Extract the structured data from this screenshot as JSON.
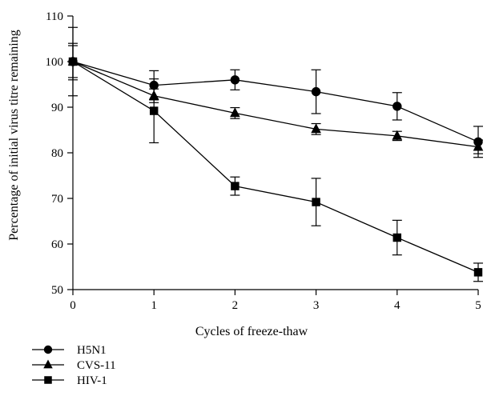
{
  "chart_data": {
    "type": "line",
    "title": "",
    "xlabel": "Cycles of freeze-thaw",
    "ylabel": "Percentage of initial virus titre remaining",
    "x": [
      0,
      1,
      2,
      3,
      4,
      5
    ],
    "xlim": [
      0,
      5
    ],
    "ylim": [
      50,
      110
    ],
    "xticks": [
      0,
      1,
      2,
      3,
      4,
      5
    ],
    "yticks": [
      50,
      60,
      70,
      80,
      90,
      100,
      110
    ],
    "grid": false,
    "legend_position": "bottom-left",
    "series": [
      {
        "name": "H5N1",
        "marker": "circle",
        "values": [
          100,
          94.8,
          96.0,
          93.4,
          90.2,
          82.4
        ],
        "errors": [
          4.0,
          3.2,
          2.2,
          4.8,
          3.0,
          3.4
        ]
      },
      {
        "name": "CVS-11",
        "marker": "triangle",
        "values": [
          100,
          92.5,
          88.7,
          85.2,
          83.7,
          81.3
        ],
        "errors": [
          3.5,
          1.5,
          1.2,
          1.2,
          1.0,
          1.5
        ]
      },
      {
        "name": "HIV-1",
        "marker": "square",
        "values": [
          100,
          89.2,
          72.7,
          69.2,
          61.4,
          53.8
        ],
        "errors": [
          7.5,
          7.0,
          2.0,
          5.2,
          3.8,
          2.0
        ]
      }
    ]
  }
}
